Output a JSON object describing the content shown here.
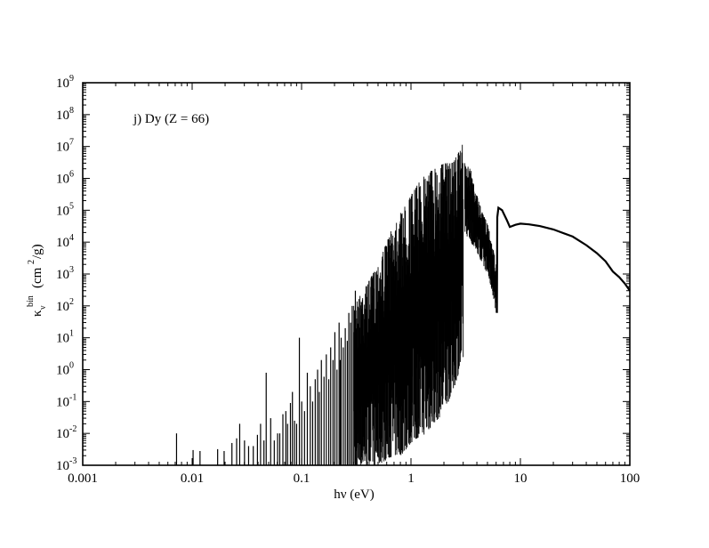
{
  "chart_data": {
    "type": "line",
    "title": "",
    "annotation": "j) Dy (Z = 66)",
    "xlabel": "hν (eV)",
    "ylabel": {
      "symbol": "κ",
      "subscript": "ν",
      "superscript": "bin",
      "units_prefix": "(cm",
      "units_power": "2",
      "units_suffix": "/g)"
    },
    "x_scale": "log",
    "y_scale": "log",
    "xlim": [
      0.001,
      100
    ],
    "ylim": [
      0.001,
      1000000000
    ],
    "x_tick_labels": [
      {
        "value": 0.001,
        "label": "0.001"
      },
      {
        "value": 0.01,
        "label": "0.01"
      },
      {
        "value": 0.1,
        "label": "0.1"
      },
      {
        "value": 1,
        "label": "1"
      },
      {
        "value": 10,
        "label": "10"
      },
      {
        "value": 100,
        "label": "100"
      }
    ],
    "y_tick_labels": [
      {
        "value": 0.001,
        "base": "10",
        "exp": "-3"
      },
      {
        "value": 0.01,
        "base": "10",
        "exp": "-2"
      },
      {
        "value": 0.1,
        "base": "10",
        "exp": "-1"
      },
      {
        "value": 1,
        "base": "10",
        "exp": "0"
      },
      {
        "value": 10,
        "base": "10",
        "exp": "1"
      },
      {
        "value": 100,
        "base": "10",
        "exp": "2"
      },
      {
        "value": 1000,
        "base": "10",
        "exp": "3"
      },
      {
        "value": 10000,
        "base": "10",
        "exp": "4"
      },
      {
        "value": 100000,
        "base": "10",
        "exp": "5"
      },
      {
        "value": 1000000,
        "base": "10",
        "exp": "6"
      },
      {
        "value": 10000000,
        "base": "10",
        "exp": "7"
      },
      {
        "value": 100000000,
        "base": "10",
        "exp": "8"
      },
      {
        "value": 1000000000,
        "base": "10",
        "exp": "9"
      }
    ],
    "grid": false,
    "series": [
      {
        "color": "#000000",
        "line_spikes": [
          [
            0.0072,
            0.01
          ],
          [
            0.0102,
            0.003
          ],
          [
            0.0118,
            0.0028
          ],
          [
            0.0171,
            0.0032
          ],
          [
            0.0196,
            0.0028
          ],
          [
            0.0231,
            0.005
          ],
          [
            0.0255,
            0.007
          ],
          [
            0.0272,
            0.02
          ],
          [
            0.0301,
            0.006
          ],
          [
            0.0328,
            0.004
          ],
          [
            0.0362,
            0.004
          ],
          [
            0.0395,
            0.009
          ],
          [
            0.0422,
            0.02
          ],
          [
            0.0453,
            0.006
          ],
          [
            0.0475,
            0.8
          ],
          [
            0.0522,
            0.03
          ],
          [
            0.0563,
            0.006
          ],
          [
            0.0604,
            0.01
          ],
          [
            0.0632,
            0.01
          ],
          [
            0.0675,
            0.04
          ],
          [
            0.0718,
            0.05
          ],
          [
            0.0745,
            0.02
          ],
          [
            0.0791,
            0.09
          ],
          [
            0.0825,
            0.2
          ],
          [
            0.0862,
            0.025
          ],
          [
            0.0901,
            0.02
          ],
          [
            0.0955,
            10
          ],
          [
            0.1003,
            0.1
          ],
          [
            0.1064,
            0.05
          ],
          [
            0.1129,
            0.8
          ],
          [
            0.1201,
            0.3
          ],
          [
            0.1262,
            0.1
          ],
          [
            0.1333,
            0.5
          ],
          [
            0.1401,
            1
          ],
          [
            0.1452,
            0.2
          ],
          [
            0.1517,
            2
          ],
          [
            0.1604,
            0.6
          ],
          [
            0.1683,
            3
          ],
          [
            0.1772,
            0.5
          ],
          [
            0.1845,
            5
          ],
          [
            0.1938,
            2
          ],
          [
            0.2015,
            15
          ],
          [
            0.2106,
            1
          ],
          [
            0.2203,
            30
          ],
          [
            0.2254,
            2
          ],
          [
            0.2301,
            10
          ],
          [
            0.2405,
            5
          ],
          [
            0.2508,
            20
          ],
          [
            0.2617,
            8
          ],
          [
            0.2703,
            60
          ],
          [
            0.2806,
            30
          ],
          [
            0.2902,
            100
          ],
          [
            0.3005,
            15
          ],
          [
            0.3102,
            300
          ],
          [
            0.3208,
            40
          ]
        ],
        "band_envelope": [
          [
            0.3,
            0.001,
            100
          ],
          [
            0.4,
            0.001,
            500
          ],
          [
            0.5,
            0.001,
            2000
          ],
          [
            0.6,
            0.0015,
            10000
          ],
          [
            0.7,
            0.002,
            40000
          ],
          [
            0.8,
            0.002,
            80000
          ],
          [
            0.9,
            0.003,
            150000
          ],
          [
            1.0,
            0.005,
            300000
          ],
          [
            1.2,
            0.008,
            800000
          ],
          [
            1.4,
            0.01,
            1500000
          ],
          [
            1.6,
            0.02,
            2000000
          ],
          [
            1.8,
            0.03,
            2500000
          ],
          [
            2.0,
            0.05,
            3000000
          ],
          [
            2.2,
            0.1,
            3000000
          ],
          [
            2.5,
            0.3,
            4000000
          ],
          [
            2.8,
            1,
            8000000
          ],
          [
            3.0,
            2,
            20000000
          ]
        ],
        "tail_envelope": [
          [
            3.1,
            20000,
            3000000
          ],
          [
            3.5,
            10000,
            2000000
          ],
          [
            4.0,
            5000,
            300000
          ],
          [
            4.5,
            2000,
            80000
          ],
          [
            5.0,
            1000,
            40000
          ],
          [
            5.5,
            300,
            10000
          ],
          [
            6.0,
            60,
            2000
          ]
        ],
        "continuum": [
          [
            6.1,
            60
          ],
          [
            6.15,
            60000
          ],
          [
            6.3,
            120000
          ],
          [
            6.8,
            100000
          ],
          [
            7.5,
            50000
          ],
          [
            8.0,
            30000
          ],
          [
            9.0,
            35000
          ],
          [
            10,
            38000
          ],
          [
            12,
            36000
          ],
          [
            15,
            32000
          ],
          [
            20,
            25000
          ],
          [
            30,
            15000
          ],
          [
            40,
            8000
          ],
          [
            50,
            4500
          ],
          [
            60,
            2500
          ],
          [
            70,
            1200
          ],
          [
            80,
            800
          ],
          [
            90,
            500
          ],
          [
            100,
            300
          ]
        ]
      }
    ]
  }
}
